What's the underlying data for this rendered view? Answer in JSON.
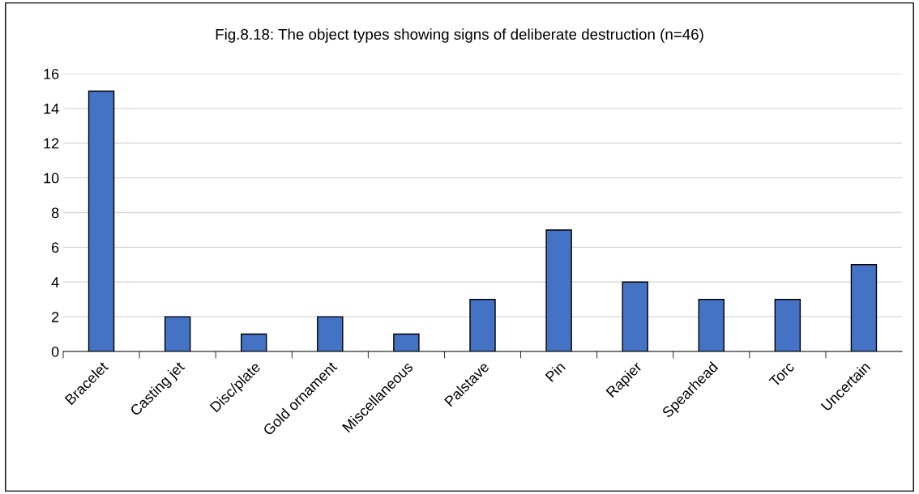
{
  "chart_data": {
    "type": "bar",
    "title": "Fig.8.18: The object types showing signs of deliberate destruction (n=46)",
    "categories": [
      "Bracelet",
      "Casting jet",
      "Disc/plate",
      "Gold ornament",
      "Miscellaneous",
      "Palstave",
      "Pin",
      "Rapier",
      "Spearhead",
      "Torc",
      "Uncertain"
    ],
    "values": [
      15,
      2,
      1,
      2,
      1,
      3,
      7,
      4,
      3,
      3,
      5
    ],
    "color": "#4472c4",
    "ylim": [
      0,
      16
    ],
    "yticks": [
      0,
      2,
      4,
      6,
      8,
      10,
      12,
      14,
      16
    ],
    "grid": "y",
    "legend": false
  }
}
